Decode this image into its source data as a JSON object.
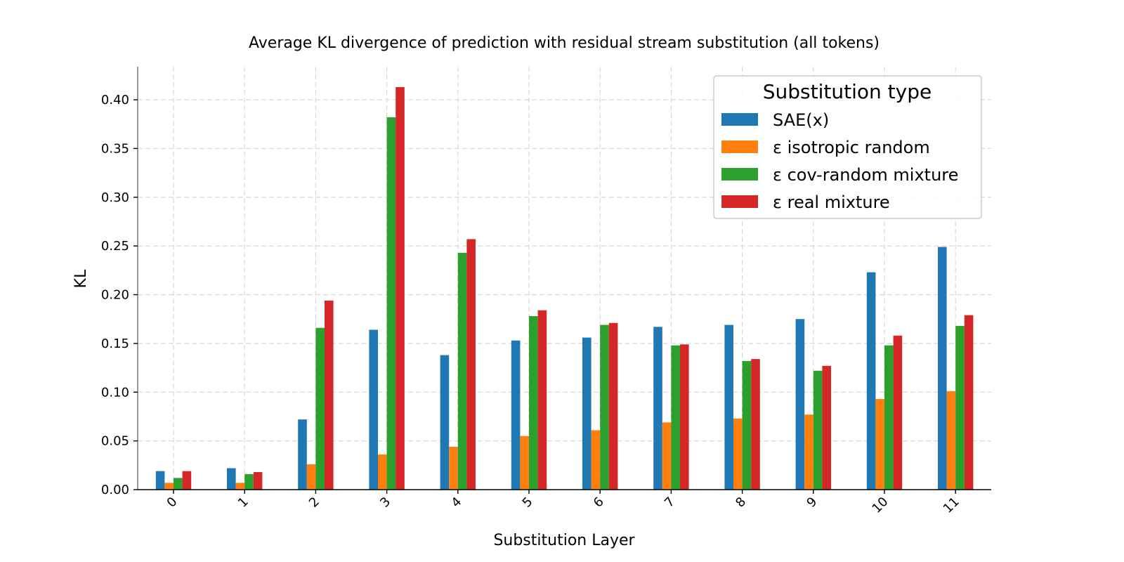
{
  "chart_data": {
    "type": "bar",
    "title": "Average KL divergence of prediction with residual stream substitution (all tokens)",
    "xlabel": "Substitution Layer",
    "ylabel": "KL",
    "ylim": [
      0,
      0.435
    ],
    "yticks": [
      "0.00",
      "0.05",
      "0.10",
      "0.15",
      "0.20",
      "0.25",
      "0.30",
      "0.35",
      "0.40"
    ],
    "ytick_values": [
      0,
      0.05,
      0.1,
      0.15,
      0.2,
      0.25,
      0.3,
      0.35,
      0.4
    ],
    "categories": [
      "0",
      "1",
      "2",
      "3",
      "4",
      "5",
      "6",
      "7",
      "8",
      "9",
      "10",
      "11"
    ],
    "grid": true,
    "legend": {
      "title": "Substitution type",
      "placement": "top-right"
    },
    "series": [
      {
        "name": "SAE(x)",
        "color": "#1f77b4",
        "values": [
          0.019,
          0.022,
          0.072,
          0.164,
          0.138,
          0.153,
          0.156,
          0.167,
          0.169,
          0.175,
          0.223,
          0.249
        ]
      },
      {
        "name": "ε isotropic random",
        "color": "#ff7f0e",
        "values": [
          0.007,
          0.007,
          0.026,
          0.036,
          0.044,
          0.055,
          0.061,
          0.069,
          0.073,
          0.077,
          0.093,
          0.101
        ]
      },
      {
        "name": "ε cov-random mixture",
        "color": "#2ca02c",
        "values": [
          0.012,
          0.016,
          0.166,
          0.382,
          0.243,
          0.178,
          0.169,
          0.148,
          0.132,
          0.122,
          0.148,
          0.168
        ]
      },
      {
        "name": "ε real mixture",
        "color": "#d62728",
        "values": [
          0.019,
          0.018,
          0.194,
          0.413,
          0.257,
          0.184,
          0.171,
          0.149,
          0.134,
          0.127,
          0.158,
          0.179
        ]
      }
    ]
  }
}
